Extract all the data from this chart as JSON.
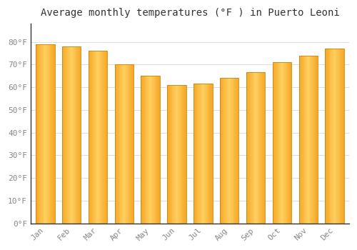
{
  "months": [
    "Jan",
    "Feb",
    "Mar",
    "Apr",
    "May",
    "Jun",
    "Jul",
    "Aug",
    "Sep",
    "Oct",
    "Nov",
    "Dec"
  ],
  "values": [
    79,
    78,
    76,
    70,
    65,
    61,
    61.5,
    64,
    66.5,
    71,
    74,
    77
  ],
  "bar_color_dark": "#F5A623",
  "bar_color_light": "#FFD060",
  "bar_edge_color": "#C8860A",
  "title": "Average monthly temperatures (°F ) in Puerto Leoni",
  "ylim": [
    0,
    88
  ],
  "yticks": [
    0,
    10,
    20,
    30,
    40,
    50,
    60,
    70,
    80
  ],
  "ytick_labels": [
    "0°F",
    "10°F",
    "20°F",
    "30°F",
    "40°F",
    "50°F",
    "60°F",
    "70°F",
    "80°F"
  ],
  "background_color": "#FFFFFF",
  "plot_bg_color": "#FFFFFF",
  "grid_color": "#DDDDDD",
  "title_fontsize": 10,
  "tick_fontsize": 8,
  "bar_width": 0.72
}
